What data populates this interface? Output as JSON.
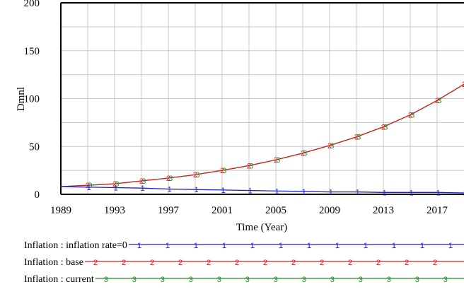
{
  "chart_data": {
    "type": "line",
    "title": "",
    "xlabel": "Time (Year)",
    "ylabel": "Dmnl",
    "xlim": [
      1989,
      2019
    ],
    "ylim": [
      0,
      200
    ],
    "x_ticks": [
      "1989",
      "1993",
      "1997",
      "2001",
      "2005",
      "2009",
      "2013",
      "2017"
    ],
    "y_ticks": [
      "0",
      "50",
      "100",
      "150",
      "200"
    ],
    "grid": true,
    "legend_position": "bottom",
    "series": [
      {
        "name": "Inflation : inflation rate=0",
        "marker": "1",
        "color": "#1f1fd6",
        "x": [
          1989,
          1991,
          1993,
          1995,
          1997,
          1999,
          2001,
          2003,
          2005,
          2007,
          2009,
          2011,
          2013,
          2015,
          2017,
          2019
        ],
        "y": [
          8,
          7.5,
          7,
          6.5,
          5.5,
          5,
          4.5,
          4,
          3.5,
          3,
          2.5,
          2.5,
          2,
          2,
          2,
          1.5
        ]
      },
      {
        "name": "Inflation : base",
        "marker": "2",
        "color": "#d62020",
        "x": [
          1989,
          1991,
          1993,
          1995,
          1997,
          1999,
          2001,
          2003,
          2005,
          2007,
          2009,
          2011,
          2013,
          2015,
          2017,
          2019
        ],
        "y": [
          8,
          9.5,
          11,
          14,
          17,
          20.5,
          25,
          30,
          36,
          43,
          51,
          60,
          70.5,
          83,
          98,
          115
        ]
      },
      {
        "name": "Inflation : current",
        "marker": "3",
        "color": "#1e8c1e",
        "x": [
          1989,
          1991,
          1993,
          1995,
          1997,
          1999,
          2001,
          2003,
          2005,
          2007,
          2009,
          2011,
          2013,
          2015,
          2017,
          2019
        ],
        "y": [
          8,
          9.5,
          11,
          14,
          17,
          20.5,
          25,
          30,
          36,
          43,
          51,
          60,
          70.5,
          83,
          98,
          115
        ]
      }
    ]
  }
}
